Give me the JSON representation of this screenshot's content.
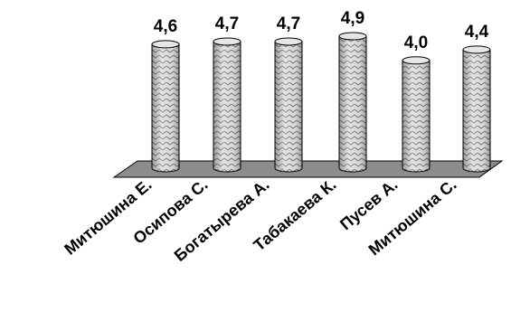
{
  "chart_data": {
    "type": "bar",
    "style": "3d-cylinder",
    "bar_pattern": "zigzag-hatched",
    "colors": {
      "bar_fill": "#d9d9d9",
      "bar_pattern": "#6a6a6a",
      "floor": "#8c8c8c",
      "outline": "#000000"
    },
    "categories": [
      "Митюшина Е.",
      "Осипова С.",
      "Богатырева А.",
      "Табакаева К.",
      "Пусев А.",
      "Митюшина С."
    ],
    "values": [
      4.6,
      4.7,
      4.7,
      4.9,
      4.0,
      4.4
    ],
    "data_labels": [
      "4,6",
      "4,7",
      "4,7",
      "4,9",
      "4,0",
      "4,4"
    ],
    "title": "",
    "xlabel": "",
    "ylabel": "",
    "ylim": [
      0,
      5
    ],
    "grid": false,
    "legend": "none"
  }
}
